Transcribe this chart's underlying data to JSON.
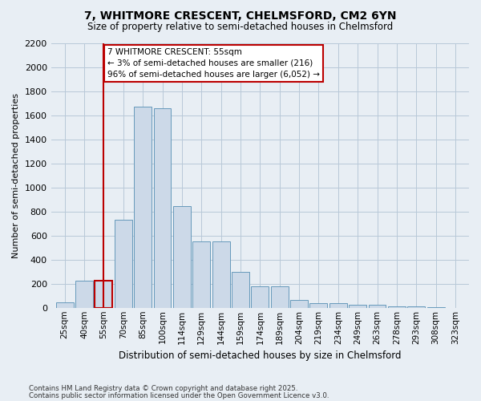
{
  "title": "7, WHITMORE CRESCENT, CHELMSFORD, CM2 6YN",
  "subtitle": "Size of property relative to semi-detached houses in Chelmsford",
  "xlabel": "Distribution of semi-detached houses by size in Chelmsford",
  "ylabel": "Number of semi-detached properties",
  "categories": [
    "25sqm",
    "40sqm",
    "55sqm",
    "70sqm",
    "85sqm",
    "100sqm",
    "114sqm",
    "129sqm",
    "144sqm",
    "159sqm",
    "174sqm",
    "189sqm",
    "204sqm",
    "219sqm",
    "234sqm",
    "249sqm",
    "263sqm",
    "278sqm",
    "293sqm",
    "308sqm",
    "323sqm"
  ],
  "values": [
    45,
    225,
    225,
    730,
    1670,
    1660,
    845,
    555,
    555,
    300,
    180,
    180,
    65,
    40,
    40,
    25,
    25,
    10,
    10,
    5,
    0
  ],
  "bar_color": "#ccd9e8",
  "bar_edge_color": "#6699bb",
  "highlight_index": 2,
  "highlight_color": "#bb0000",
  "annotation_text": "7 WHITMORE CRESCENT: 55sqm\n← 3% of semi-detached houses are smaller (216)\n96% of semi-detached houses are larger (6,052) →",
  "annotation_box_color": "#ffffff",
  "annotation_box_edge_color": "#bb0000",
  "ylim": [
    0,
    2200
  ],
  "yticks": [
    0,
    200,
    400,
    600,
    800,
    1000,
    1200,
    1400,
    1600,
    1800,
    2000,
    2200
  ],
  "footer1": "Contains HM Land Registry data © Crown copyright and database right 2025.",
  "footer2": "Contains public sector information licensed under the Open Government Licence v3.0.",
  "bg_color": "#e8eef4",
  "plot_bg_color": "#e8eef4",
  "grid_color": "#b8c8d8"
}
